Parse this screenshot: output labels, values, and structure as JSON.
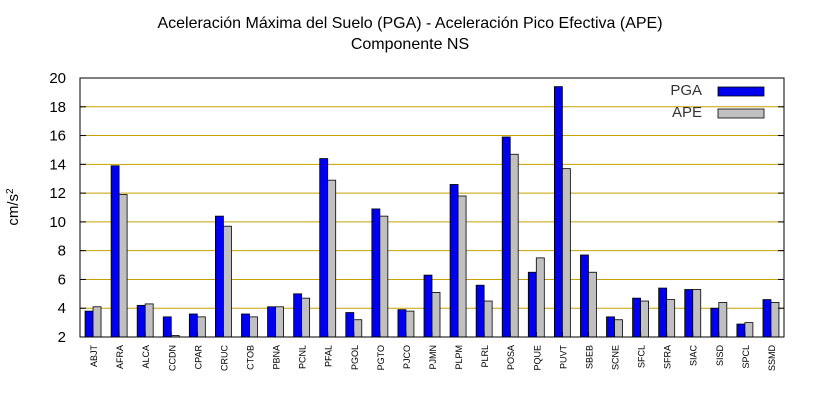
{
  "chart_data": {
    "type": "bar",
    "title": "Aceleración Máxima del Suelo (PGA) -  Aceleración Pico Efectiva (APE)",
    "subtitle": "Componente NS",
    "ylabel": "cm/s",
    "ylabel_sup": "2",
    "ylim": [
      2,
      20
    ],
    "yticks": [
      2,
      4,
      6,
      8,
      10,
      12,
      14,
      16,
      18,
      20
    ],
    "grid": true,
    "legend_position": "top-right",
    "categories": [
      "ABJT",
      "AFRA",
      "ALCA",
      "CCDN",
      "CPAR",
      "CRUC",
      "CTOB",
      "PBNA",
      "PCNL",
      "PFAL",
      "PGOL",
      "PGTO",
      "PJCO",
      "PJMN",
      "PLPM",
      "PLRL",
      "POSA",
      "PQUE",
      "PUVT",
      "SBEB",
      "SCNE",
      "SFCL",
      "SFRA",
      "SIAC",
      "SISD",
      "SPCL",
      "SSMD"
    ],
    "series": [
      {
        "name": "PGA",
        "color": "#0000ee",
        "values": [
          3.8,
          13.9,
          4.2,
          3.4,
          3.6,
          10.4,
          3.6,
          4.1,
          5.0,
          14.4,
          3.7,
          10.9,
          3.9,
          6.3,
          12.6,
          5.6,
          15.9,
          6.5,
          19.4,
          7.7,
          3.4,
          4.7,
          5.4,
          5.3,
          4.0,
          2.9,
          4.6
        ]
      },
      {
        "name": "APE",
        "color": "#c0c0c0",
        "values": [
          4.1,
          11.9,
          4.3,
          2.1,
          3.4,
          9.7,
          3.4,
          4.1,
          4.7,
          12.9,
          3.2,
          10.4,
          3.8,
          5.1,
          11.8,
          4.5,
          14.7,
          7.5,
          13.7,
          6.5,
          3.2,
          4.5,
          4.6,
          5.3,
          4.4,
          3.0,
          4.4
        ]
      }
    ],
    "colors": {
      "grid": "#c8a000",
      "axis": "#000000"
    }
  }
}
